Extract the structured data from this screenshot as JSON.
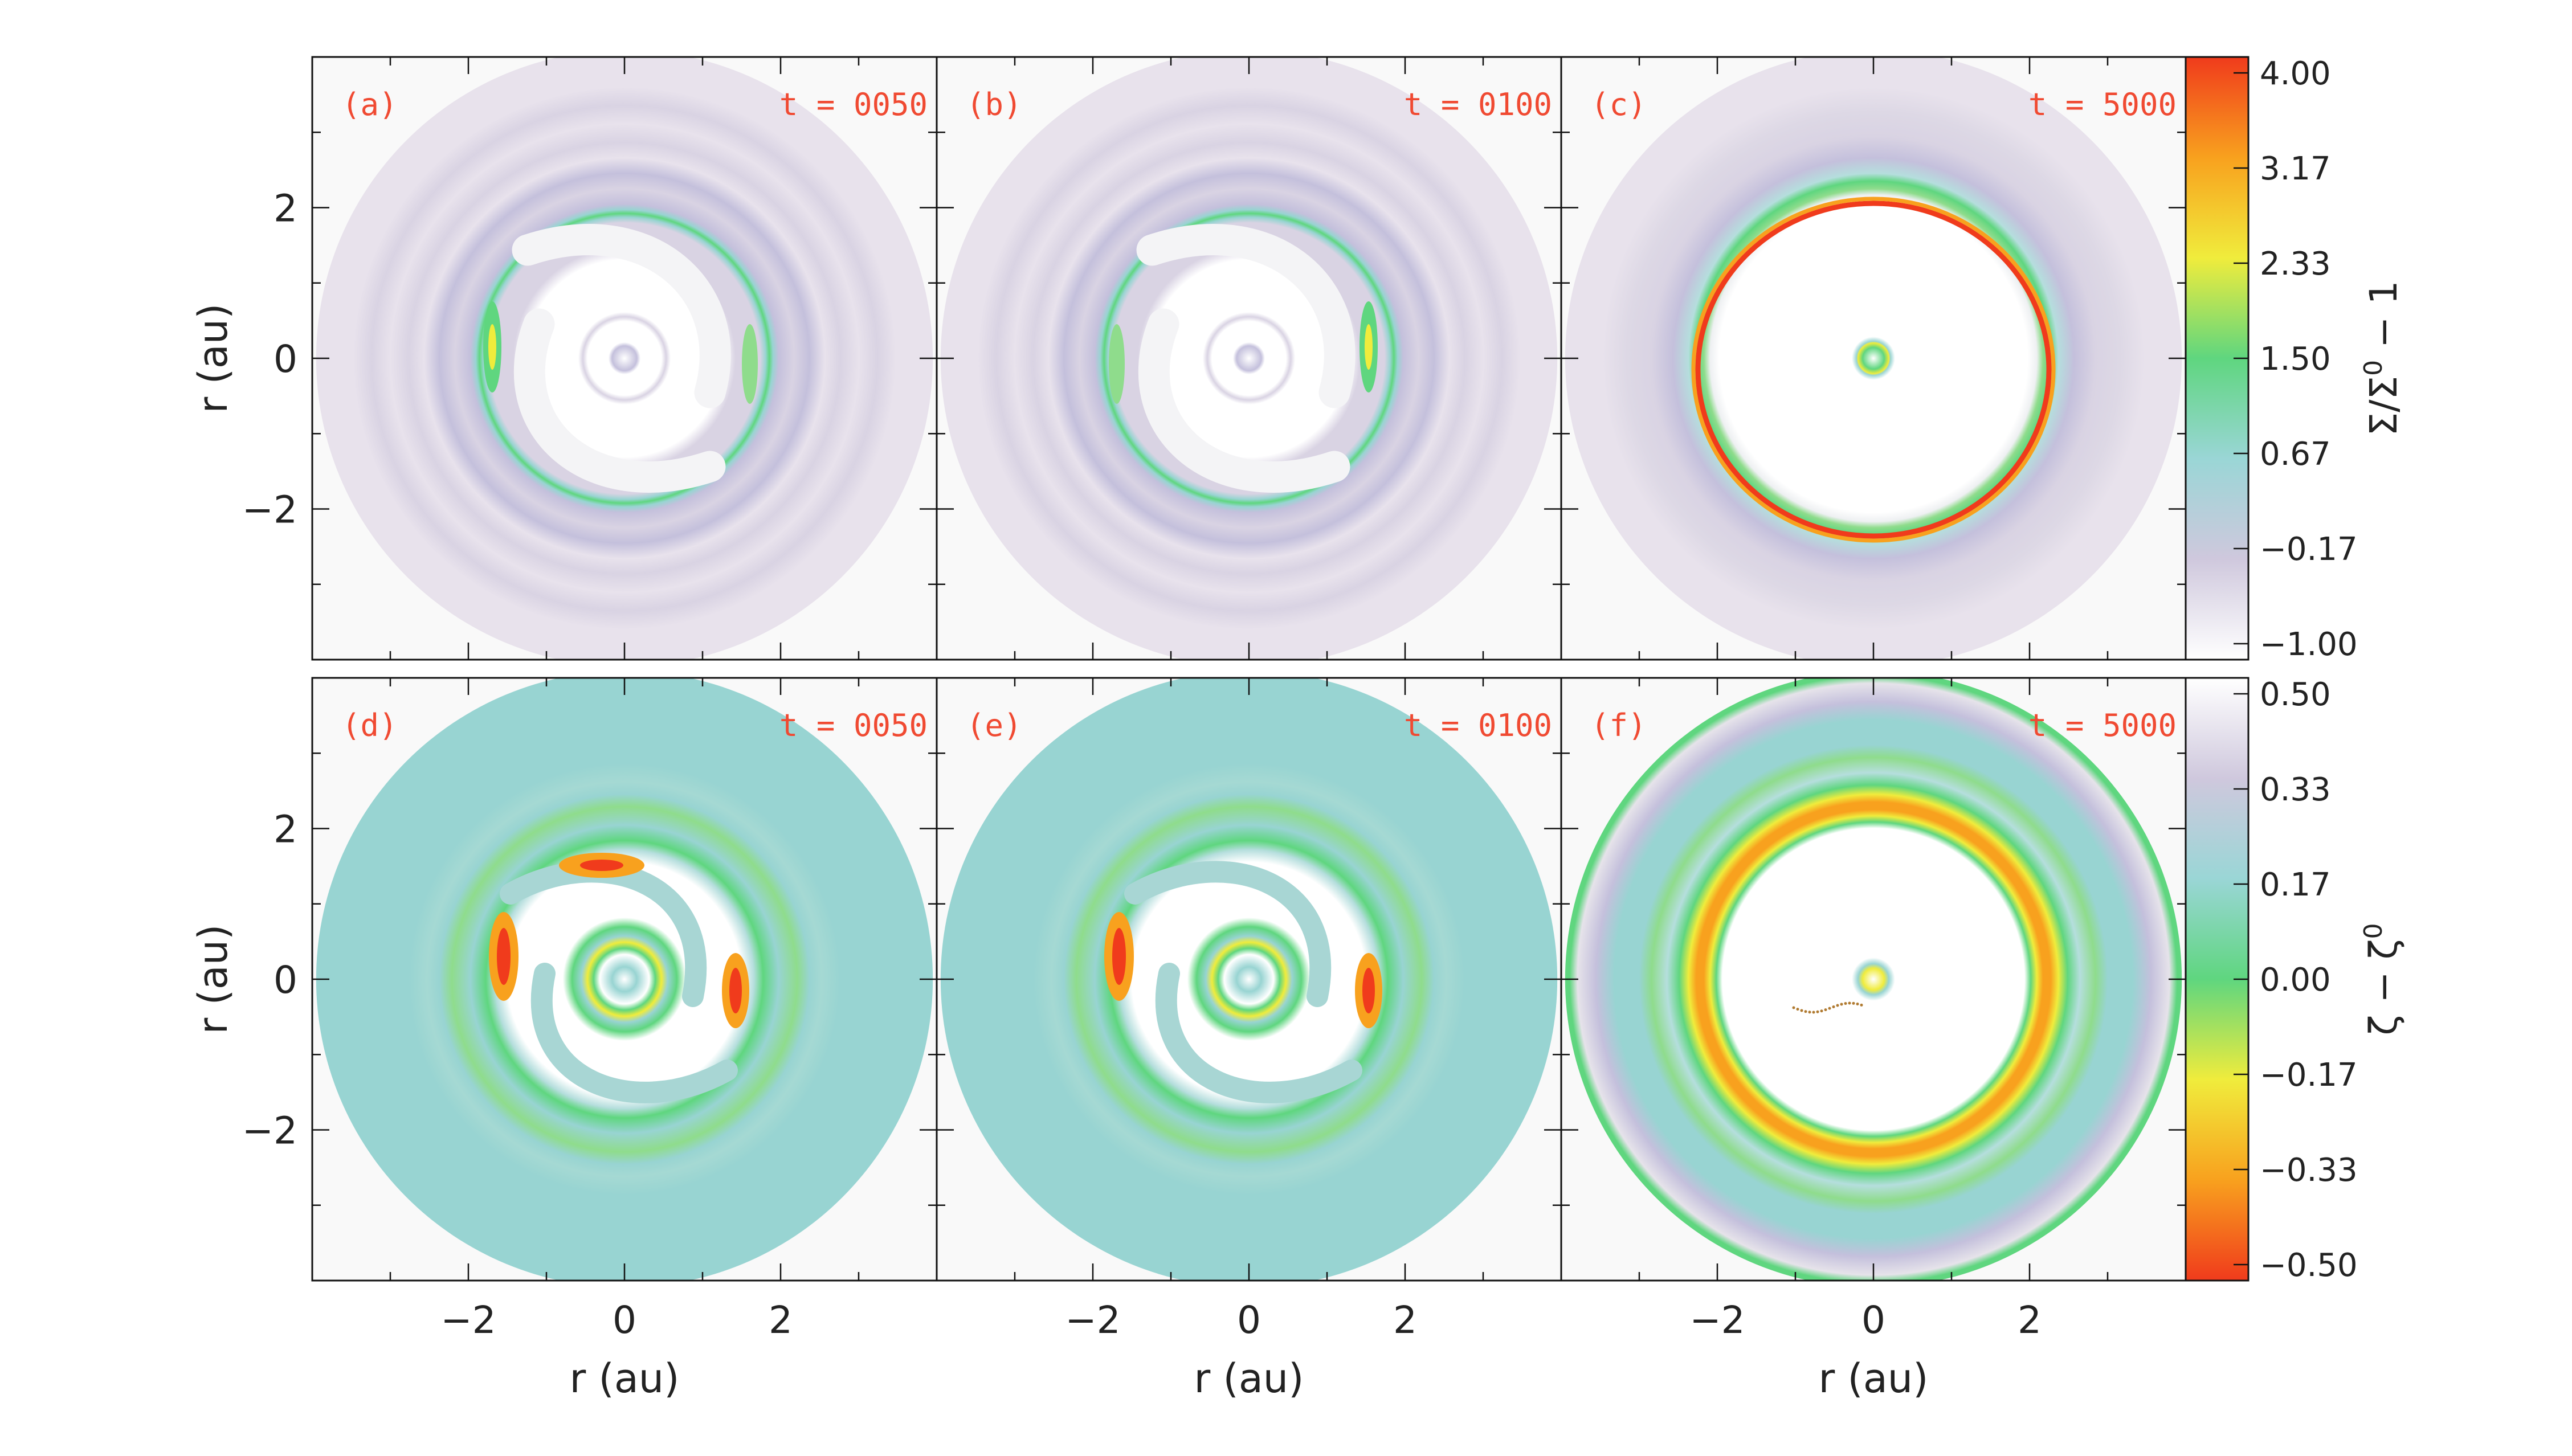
{
  "chart_data": {
    "type": "heatmap",
    "xlabel": "r (au)",
    "ylabel": "r (au)",
    "xlim": [
      -4,
      4
    ],
    "ylim": [
      -4,
      4
    ],
    "x_ticks": [
      -2,
      0,
      2
    ],
    "y_ticks": [
      -2,
      0,
      2
    ],
    "x_tick_labels": [
      "−2",
      "0",
      "2"
    ],
    "y_tick_labels": [
      "−2",
      "0",
      "2"
    ],
    "grid": false,
    "panel_label_color": "#f04a32",
    "rows": [
      {
        "quantity": "surface density perturbation",
        "colorbar_label_main": "Σ/Σ",
        "colorbar_label_sup": "0",
        "colorbar_label_tail": " − 1",
        "colorbar_range": [
          -1.0,
          4.0
        ],
        "colorbar_ticks": [
          "4.00",
          "3.17",
          "2.33",
          "1.50",
          "0.67",
          "−0.17",
          "−1.00"
        ],
        "colorbar_colors": [
          "#ffffff",
          "#cfc8dd",
          "#9ad6d6",
          "#5fd67f",
          "#f0ec3c",
          "#f8a11e",
          "#f03b1c"
        ],
        "panels": [
          {
            "label": "(a)",
            "time": "t = 0050"
          },
          {
            "label": "(b)",
            "time": "t = 0100"
          },
          {
            "label": "(c)",
            "time": "t = 5000"
          }
        ]
      },
      {
        "quantity": "zeta perturbation",
        "colorbar_label_main": "ζ − ζ",
        "colorbar_label_sup": "0",
        "colorbar_label_tail": "",
        "colorbar_range": [
          -0.5,
          0.5
        ],
        "colorbar_ticks": [
          "0.50",
          "0.33",
          "0.17",
          "0.00",
          "−0.17",
          "−0.33",
          "−0.50"
        ],
        "colorbar_colors": [
          "#f03b1c",
          "#f8a11e",
          "#f0ec3c",
          "#5fd67f",
          "#9ad6d6",
          "#cfc8dd",
          "#ffffff"
        ],
        "panels": [
          {
            "label": "(d)",
            "time": "t = 0050"
          },
          {
            "label": "(e)",
            "time": "t = 0100"
          },
          {
            "label": "(f)",
            "time": "t = 5000"
          }
        ]
      }
    ]
  }
}
